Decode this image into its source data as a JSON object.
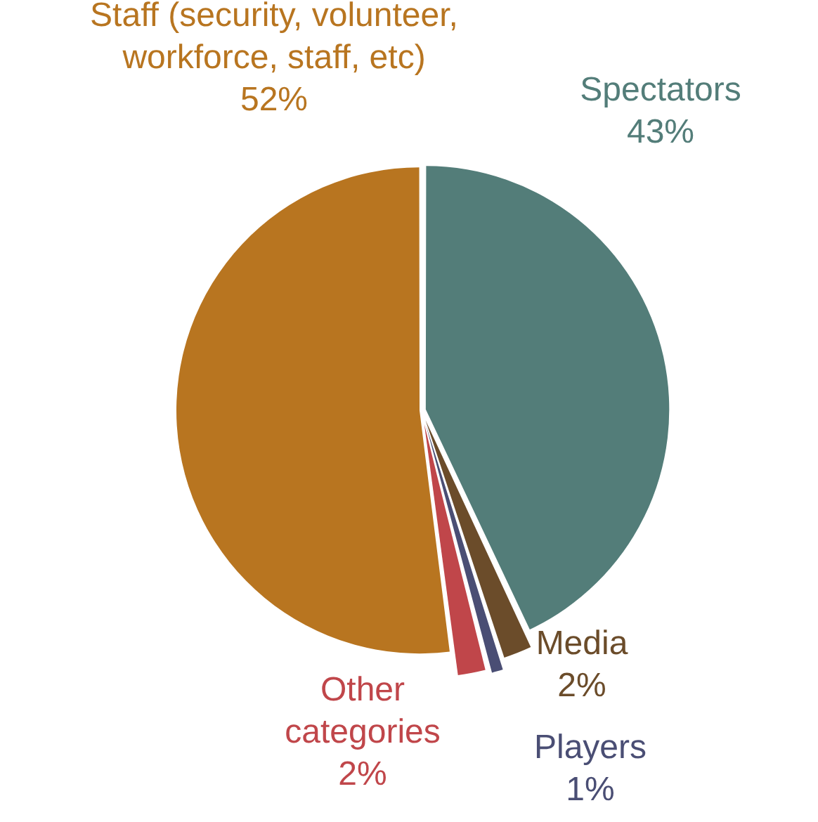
{
  "chart_data": {
    "type": "pie",
    "categories": [
      "Spectators",
      "Media",
      "Players",
      "Other categories",
      "Staff (security, volunteer, workforce, staff, etc)"
    ],
    "values": [
      43,
      2,
      1,
      2,
      52
    ],
    "colors": [
      "#537d79",
      "#6b4c2a",
      "#4a4e74",
      "#c0464a",
      "#b87520"
    ],
    "value_labels": [
      "43%",
      "2%",
      "1%",
      "2%",
      "52%"
    ],
    "legend": false
  }
}
